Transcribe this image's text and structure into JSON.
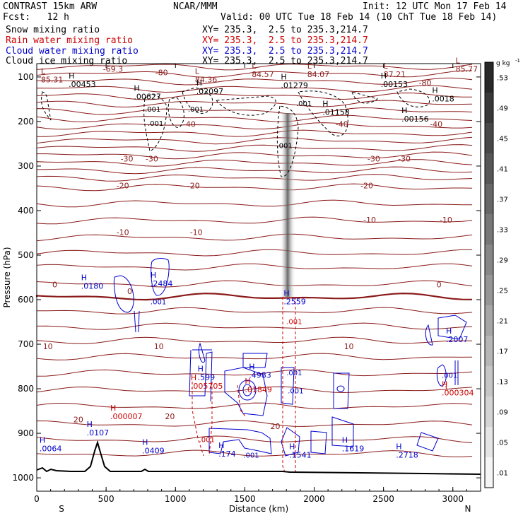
{
  "header": {
    "model": "CONTRAST 15km ARW",
    "org": "NCAR/MMM",
    "init": "Init: 12 UTC Mon 17 Feb 14",
    "fcst": "Fcst:   12 h",
    "valid": "Valid: 00 UTC Tue 18 Feb 14 (10 ChT Tue 18 Feb 14)"
  },
  "legend": [
    {
      "label": "Snow mixing ratio",
      "xy": "XY= 235.3,  2.5 to 235.3,214.7",
      "color": "#000000"
    },
    {
      "label": "Rain water mixing ratio",
      "xy": "XY= 235.3,  2.5 to 235.3,214.7",
      "color": "#cc0000"
    },
    {
      "label": "Cloud water mixing ratio",
      "xy": "XY= 235.3,  2.5 to 235.3,214.7",
      "color": "#0000cc"
    },
    {
      "label": "Cloud ice mixing ratio",
      "xy": "XY= 235.3,  2.5 to 235.3,214.7",
      "color": "#000000"
    }
  ],
  "chart_data": {
    "type": "cross-section",
    "xlabel": "Distance (km)",
    "ylabel": "Pressure (hPa)",
    "xlim": [
      0,
      3200
    ],
    "ylim": [
      1030,
      70
    ],
    "x_ticks": [
      "0",
      "500",
      "1000",
      "1500",
      "2000",
      "2500",
      "3000"
    ],
    "x_tick_values": [
      0,
      500,
      1000,
      1500,
      2000,
      2500,
      3000
    ],
    "y_ticks": [
      "100",
      "200",
      "300",
      "400",
      "500",
      "600",
      "700",
      "800",
      "900",
      "1000"
    ],
    "y_tick_values": [
      100,
      200,
      300,
      400,
      500,
      600,
      700,
      800,
      900,
      1000
    ],
    "endpoints": {
      "left": "S",
      "right": "N"
    },
    "colorbar": {
      "unit": "g kg",
      "unit_exp": "-1",
      "labels": [
        ".01",
        ".05",
        ".09",
        ".13",
        ".17",
        ".21",
        ".25",
        ".29",
        ".33",
        ".37",
        ".41",
        ".45",
        ".49",
        ".53"
      ],
      "values": [
        0.01,
        0.05,
        0.09,
        0.13,
        0.17,
        0.21,
        0.25,
        0.29,
        0.33,
        0.37,
        0.41,
        0.45,
        0.49,
        0.53
      ]
    },
    "temperature_contours": [
      {
        "label": "-80",
        "x": 900,
        "p": 96
      },
      {
        "label": "-80",
        "x": 2800,
        "p": 119
      },
      {
        "label": "-69.3",
        "x": 550,
        "p": 88
      },
      {
        "label": "-40",
        "x": 1100,
        "p": 212
      },
      {
        "label": "-40",
        "x": 2200,
        "p": 212
      },
      {
        "label": "-40",
        "x": 2880,
        "p": 212
      },
      {
        "label": "-30",
        "x": 650,
        "p": 290
      },
      {
        "label": "-30",
        "x": 830,
        "p": 290
      },
      {
        "label": "-30",
        "x": 2430,
        "p": 290
      },
      {
        "label": "-30",
        "x": 2650,
        "p": 290
      },
      {
        "label": "-20",
        "x": 620,
        "p": 350
      },
      {
        "label": "-20",
        "x": 1130,
        "p": 350
      },
      {
        "label": "-20",
        "x": 2380,
        "p": 350
      },
      {
        "label": "-10",
        "x": 620,
        "p": 455
      },
      {
        "label": "-10",
        "x": 1150,
        "p": 455
      },
      {
        "label": "-10",
        "x": 2400,
        "p": 427
      },
      {
        "label": "-10",
        "x": 2950,
        "p": 427
      },
      {
        "label": "0",
        "x": 130,
        "p": 572
      },
      {
        "label": "0",
        "x": 670,
        "p": 587
      },
      {
        "label": "0",
        "x": 2900,
        "p": 572
      },
      {
        "label": "10",
        "x": 80,
        "p": 711
      },
      {
        "label": "10",
        "x": 880,
        "p": 711
      },
      {
        "label": "10",
        "x": 2250,
        "p": 711
      },
      {
        "label": "20",
        "x": 300,
        "p": 875
      },
      {
        "label": "20",
        "x": 960,
        "p": 868
      },
      {
        "label": "20",
        "x": 1720,
        "p": 890
      }
    ],
    "extrema": [
      {
        "kind": "L",
        "value": "85.31",
        "x": 30,
        "p": 112,
        "color": "#8b1a1a"
      },
      {
        "kind": "H",
        "value": ".00453",
        "x": 230,
        "p": 122,
        "color": "#000000"
      },
      {
        "kind": "H",
        "value": ".00627",
        "x": 700,
        "p": 150,
        "color": "#000000"
      },
      {
        "kind": "L",
        "value": "84.36",
        "x": 1140,
        "p": 112,
        "color": "#8b1a1a"
      },
      {
        "kind": "H",
        "value": ".02097",
        "x": 1150,
        "p": 138,
        "color": "#000000"
      },
      {
        "kind": "L",
        "value": "84.57",
        "x": 1550,
        "p": 100,
        "color": "#8b1a1a"
      },
      {
        "kind": "H",
        "value": ".01279",
        "x": 1760,
        "p": 125,
        "color": "#000000"
      },
      {
        "kind": "L",
        "value": "84.07",
        "x": 1950,
        "p": 100,
        "color": "#8b1a1a"
      },
      {
        "kind": "L",
        "value": "87.21",
        "x": 2500,
        "p": 100,
        "color": "#8b1a1a"
      },
      {
        "kind": "H",
        "value": ".00153",
        "x": 2480,
        "p": 122,
        "color": "#000000"
      },
      {
        "kind": "L",
        "value": "85.77",
        "x": 3020,
        "p": 88,
        "color": "#8b1a1a"
      },
      {
        "kind": "H",
        "value": ".0018",
        "x": 2850,
        "p": 155,
        "color": "#000000"
      },
      {
        "kind": "H",
        "value": ".01158",
        "x": 2060,
        "p": 185,
        "color": "#000000"
      },
      {
        "kind": "H",
        "value": ".00156",
        "x": 2630,
        "p": 200,
        "color": "#000000"
      },
      {
        "kind": "H",
        "value": ".0180",
        "x": 320,
        "p": 575,
        "color": "#0000cc"
      },
      {
        "kind": "H",
        "value": ".2484",
        "x": 820,
        "p": 570,
        "color": "#0000cc"
      },
      {
        "kind": "H",
        "value": ".2559",
        "x": 1780,
        "p": 610,
        "color": "#0000cc"
      },
      {
        "kind": "H",
        "value": ".2007",
        "x": 2950,
        "p": 695,
        "color": "#0000cc"
      },
      {
        "kind": "H",
        "value": ".599",
        "x": 1160,
        "p": 780,
        "color": "#0000cc"
      },
      {
        "kind": "H",
        "value": ".005705",
        "x": 1110,
        "p": 800,
        "color": "#cc0000"
      },
      {
        "kind": "H",
        "value": ".4983",
        "x": 1530,
        "p": 775,
        "color": "#0000cc"
      },
      {
        "kind": "H",
        "value": ".01849",
        "x": 1500,
        "p": 808,
        "color": "#cc0000"
      },
      {
        "kind": "H",
        "value": ".000007",
        "x": 530,
        "p": 868,
        "color": "#cc0000"
      },
      {
        "kind": "H",
        "value": ".000304",
        "x": 2920,
        "p": 815,
        "color": "#cc0000"
      },
      {
        "kind": "H",
        "value": ".0107",
        "x": 360,
        "p": 905,
        "color": "#0000cc"
      },
      {
        "kind": "H",
        "value": ".0409",
        "x": 760,
        "p": 945,
        "color": "#0000cc"
      },
      {
        "kind": "H",
        "value": ".0064",
        "x": 20,
        "p": 940,
        "color": "#0000cc"
      },
      {
        "kind": "H",
        "value": ".174",
        "x": 1310,
        "p": 952,
        "color": "#0000cc"
      },
      {
        "kind": "H",
        "value": ".1541",
        "x": 1820,
        "p": 955,
        "color": "#0000cc"
      },
      {
        "kind": "H",
        "value": ".1619",
        "x": 2200,
        "p": 940,
        "color": "#0000cc"
      },
      {
        "kind": "H",
        "value": ".2718",
        "x": 2590,
        "p": 955,
        "color": "#0000cc"
      }
    ],
    "small_labels": [
      {
        "text": ".001",
        "x": 780,
        "p": 178,
        "color": "#000000"
      },
      {
        "text": ".001",
        "x": 1090,
        "p": 178,
        "color": "#000000"
      },
      {
        "text": ".001",
        "x": 800,
        "p": 210,
        "color": "#000000"
      },
      {
        "text": ".001",
        "x": 1870,
        "p": 165,
        "color": "#000000"
      },
      {
        "text": ".001",
        "x": 1730,
        "p": 260,
        "color": "#000000"
      },
      {
        "text": ".001",
        "x": 820,
        "p": 610,
        "color": "#0000cc"
      },
      {
        "text": ".001",
        "x": 1800,
        "p": 770,
        "color": "#0000cc"
      },
      {
        "text": ".001",
        "x": 1810,
        "p": 810,
        "color": "#0000cc"
      },
      {
        "text": ".001",
        "x": 1490,
        "p": 955,
        "color": "#0000cc"
      },
      {
        "text": ".001",
        "x": 2920,
        "p": 775,
        "color": "#0000cc"
      },
      {
        "text": ".001",
        "x": 1170,
        "p": 920,
        "color": "#cc0000"
      },
      {
        "text": ".001",
        "x": 1800,
        "p": 655,
        "color": "#cc0000"
      }
    ]
  }
}
